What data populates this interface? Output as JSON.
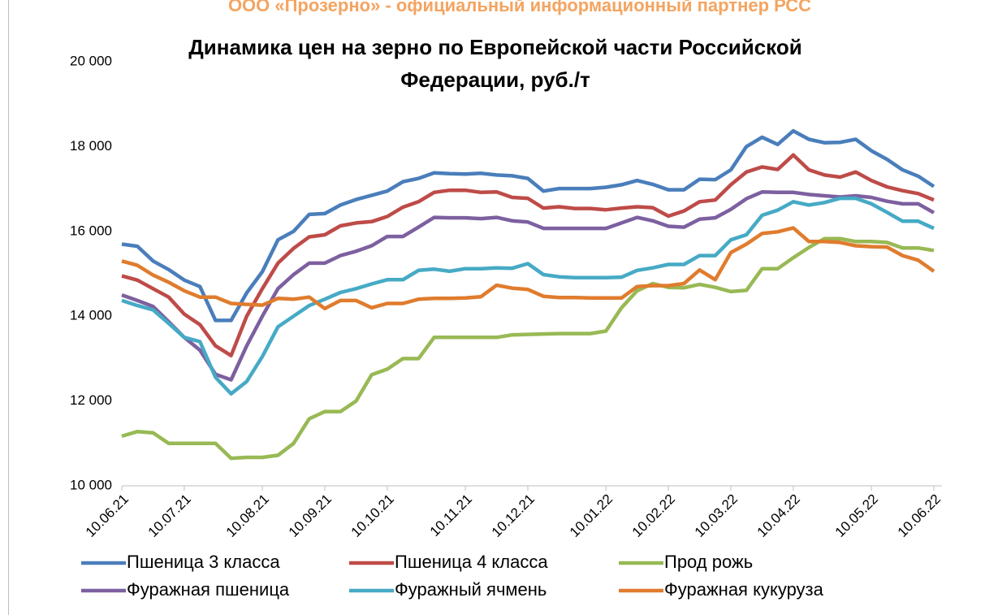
{
  "header": {
    "watermark": "ООО «Прозерно» - официальный информационный партнер РСС"
  },
  "chart_data": {
    "type": "line",
    "title": [
      "Динамика цен на зерно по Европейской части Российской",
      "Федерации, руб./т"
    ],
    "categories": [
      "10.06.21",
      null,
      null,
      null,
      "10.07.21",
      null,
      null,
      null,
      null,
      "10.08.21",
      null,
      null,
      null,
      "10.09.21",
      null,
      null,
      null,
      "10.10.21",
      null,
      null,
      null,
      null,
      "10.11.21",
      null,
      null,
      null,
      "10.12.21",
      null,
      null,
      null,
      null,
      "10.01.22",
      null,
      null,
      null,
      "10.02.22",
      null,
      null,
      null,
      "10.03.22",
      null,
      null,
      null,
      "10.04.22",
      null,
      null,
      null,
      null,
      "10.05.22",
      null,
      null,
      null,
      "10.06.22"
    ],
    "ylim": [
      10000,
      20000
    ],
    "yticks": [
      {
        "value": 10000,
        "label": "10 000"
      },
      {
        "value": 12000,
        "label": "12 000"
      },
      {
        "value": 14000,
        "label": "14 000"
      },
      {
        "value": 16000,
        "label": "16 000"
      },
      {
        "value": 18000,
        "label": "18 000"
      },
      {
        "value": 20000,
        "label": "20 000"
      }
    ],
    "grid": false,
    "legend": "bottom",
    "series": [
      {
        "name": "Пшеница 3 класса",
        "color": "#4a7ebb",
        "values": [
          15700,
          15650,
          15300,
          15100,
          14850,
          14700,
          13900,
          13900,
          14550,
          15050,
          15800,
          16000,
          16400,
          16420,
          16620,
          16750,
          16850,
          16950,
          17170,
          17250,
          17380,
          17360,
          17350,
          17370,
          17330,
          17310,
          17250,
          16950,
          17010,
          17010,
          17010,
          17040,
          17100,
          17200,
          17110,
          16980,
          16980,
          17230,
          17220,
          17450,
          18000,
          18220,
          18050,
          18370,
          18170,
          18090,
          18100,
          18170,
          17900,
          17700,
          17450,
          17300,
          17060
        ]
      },
      {
        "name": "Пшеница 4 класса",
        "color": "#be4b48",
        "values": [
          14950,
          14850,
          14650,
          14450,
          14050,
          13800,
          13300,
          13070,
          14000,
          14650,
          15250,
          15600,
          15870,
          15920,
          16130,
          16200,
          16230,
          16350,
          16570,
          16700,
          16920,
          16970,
          16970,
          16920,
          16930,
          16800,
          16780,
          16550,
          16580,
          16540,
          16540,
          16510,
          16550,
          16580,
          16560,
          16360,
          16480,
          16700,
          16740,
          17100,
          17400,
          17520,
          17460,
          17800,
          17450,
          17330,
          17280,
          17400,
          17200,
          17050,
          16960,
          16890,
          16740
        ]
      },
      {
        "name": "Прод рожь",
        "color": "#98b954",
        "values": [
          11170,
          11280,
          11250,
          11000,
          11000,
          11000,
          11000,
          10650,
          10670,
          10670,
          10720,
          11000,
          11580,
          11750,
          11750,
          12000,
          12620,
          12750,
          13000,
          13000,
          13500,
          13500,
          13500,
          13500,
          13500,
          13560,
          13570,
          13580,
          13590,
          13590,
          13590,
          13650,
          14200,
          14600,
          14770,
          14680,
          14670,
          14750,
          14680,
          14580,
          14610,
          15120,
          15120,
          15380,
          15620,
          15830,
          15830,
          15760,
          15760,
          15740,
          15610,
          15610,
          15550
        ]
      },
      {
        "name": "Фуражная пшеница",
        "color": "#7d60a0",
        "values": [
          14500,
          14370,
          14230,
          13870,
          13500,
          13200,
          12630,
          12500,
          13300,
          14000,
          14650,
          14980,
          15250,
          15250,
          15430,
          15530,
          15660,
          15880,
          15880,
          16100,
          16330,
          16320,
          16320,
          16300,
          16330,
          16250,
          16220,
          16070,
          16070,
          16070,
          16070,
          16070,
          16200,
          16330,
          16250,
          16120,
          16100,
          16290,
          16320,
          16520,
          16770,
          16930,
          16920,
          16920,
          16870,
          16840,
          16810,
          16840,
          16800,
          16710,
          16650,
          16650,
          16440
        ]
      },
      {
        "name": "Фуражный ячмень",
        "color": "#46aac5",
        "values": [
          14370,
          14250,
          14150,
          13830,
          13500,
          13400,
          12560,
          12170,
          12460,
          13050,
          13750,
          14000,
          14250,
          14400,
          14560,
          14650,
          14760,
          14860,
          14860,
          15080,
          15110,
          15060,
          15120,
          15120,
          15140,
          15130,
          15240,
          14980,
          14930,
          14910,
          14910,
          14910,
          14920,
          15080,
          15140,
          15220,
          15220,
          15430,
          15430,
          15800,
          15920,
          16380,
          16500,
          16700,
          16620,
          16680,
          16780,
          16780,
          16650,
          16450,
          16240,
          16240,
          16070
        ]
      },
      {
        "name": "Фуражная кукуруза",
        "color": "#e07c2e",
        "values": [
          15300,
          15200,
          14970,
          14800,
          14600,
          14450,
          14450,
          14300,
          14280,
          14260,
          14420,
          14400,
          14450,
          14180,
          14370,
          14370,
          14200,
          14300,
          14300,
          14400,
          14420,
          14420,
          14430,
          14460,
          14730,
          14660,
          14630,
          14470,
          14440,
          14440,
          14430,
          14430,
          14430,
          14700,
          14720,
          14720,
          14770,
          15090,
          14860,
          15500,
          15700,
          15950,
          15990,
          16080,
          15760,
          15760,
          15740,
          15660,
          15640,
          15630,
          15430,
          15320,
          15060
        ]
      }
    ]
  }
}
